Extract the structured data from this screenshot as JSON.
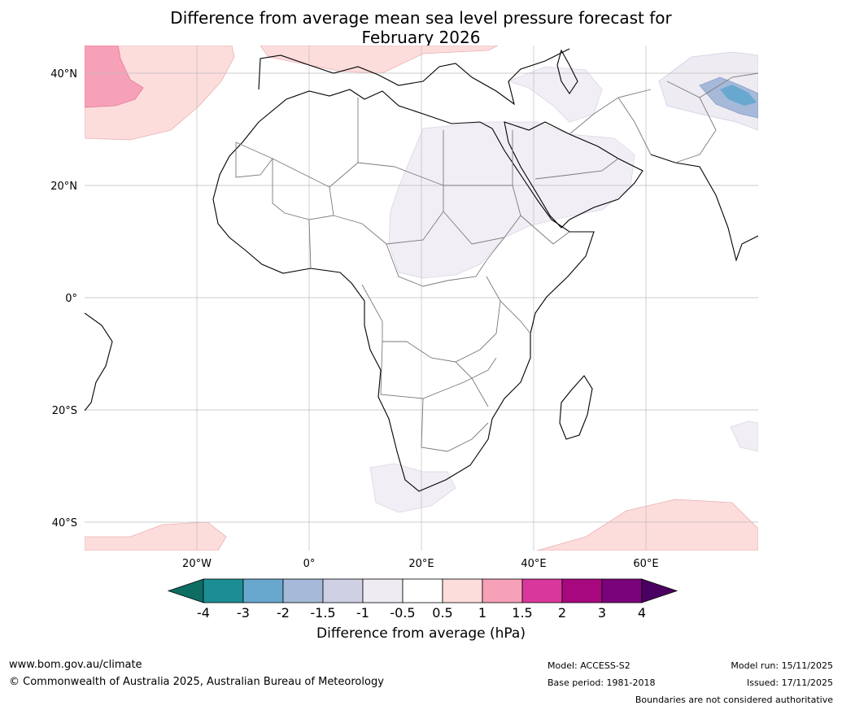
{
  "title": {
    "line1": "Difference from average mean sea level pressure forecast for",
    "line2": "February 2026"
  },
  "map": {
    "lat_labels": [
      "40°N",
      "20°N",
      "0°",
      "20°S",
      "40°S"
    ],
    "lon_labels": [
      "20°W",
      "0°",
      "20°E",
      "40°E",
      "60°E"
    ],
    "extent": {
      "lon": [
        -40,
        80
      ],
      "lat": [
        -45,
        45
      ]
    }
  },
  "colorbar": {
    "title": "Difference from average (hPa)",
    "ticks": [
      "-4",
      "-3",
      "-2",
      "-1.5",
      "-1",
      "-0.5",
      "0.5",
      "1",
      "1.5",
      "2",
      "3",
      "4"
    ],
    "colors": {
      "below_min": "#0d6d63",
      "bins": [
        "#1b8e93",
        "#68a8cf",
        "#a6b9d9",
        "#cfd0e4",
        "#eeebf3",
        "#ffffff",
        "#fddcdc",
        "#f7a1b8",
        "#d9379b",
        "#a8087e",
        "#7a037b"
      ],
      "above_max": "#4a0060"
    }
  },
  "footer": {
    "website": "www.bom.gov.au/climate",
    "copyright": "© Commonwealth of Australia 2025, Australian Bureau of Meteorology",
    "model": "Model: ACCESS-S2",
    "base_period": "Base period: 1981-2018",
    "model_run": "Model run: 15/11/2025",
    "issued": "Issued: 17/11/2025",
    "disclaimer": "Boundaries are not considered authoritative"
  }
}
